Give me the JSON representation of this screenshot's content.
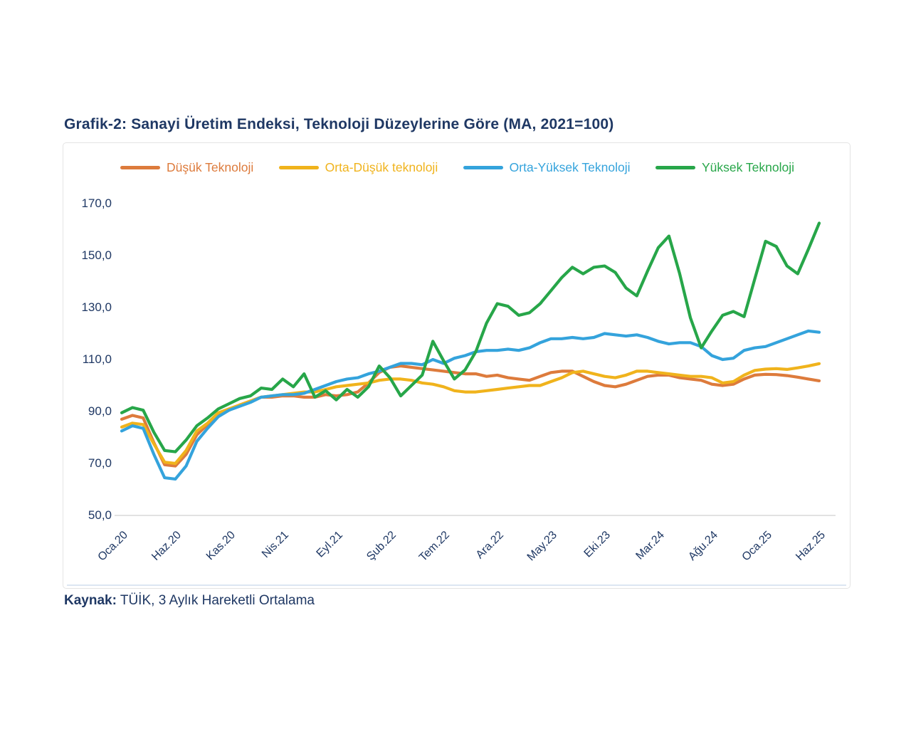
{
  "title": "Grafik-2: Sanayi Üretim Endeksi, Teknoloji Düzeylerine Göre (MA, 2021=100)",
  "source": {
    "label": "Kaynak:",
    "text": " TÜİK, 3 Aylık Hareketli Ortalama"
  },
  "colors": {
    "title_navy": "#1f3864",
    "axis_text": "#1f3864",
    "axis_line": "#d9d9d9",
    "card_border": "#e4e4e4",
    "bottom_rule": "#dce6f2"
  },
  "chart_data": {
    "type": "line",
    "title": "Grafik-2: Sanayi Üretim Endeksi, Teknoloji Düzeylerine Göre (MA, 2021=100)",
    "x_unit": "month",
    "x_range_note": "monthly points from Oca.20 (Jan 2020) to Haz.25 (Jun 2025), 66 points",
    "n_points": 66,
    "x_tick_every": 5,
    "x_tick_labels": [
      "Oca.20",
      "Haz.20",
      "Kas.20",
      "Nis.21",
      "Eyl.21",
      "Şub.22",
      "Tem.22",
      "Ara.22",
      "May.23",
      "Eki.23",
      "Mar.24",
      "Ağu.24",
      "Oca.25",
      "Haz.25"
    ],
    "y_tick_labels": [
      "170,0",
      "150,0",
      "130,0",
      "110,0",
      "90,0",
      "70,0",
      "50,0"
    ],
    "y_tick_values": [
      170,
      150,
      130,
      110,
      90,
      70,
      50
    ],
    "ylim": [
      50,
      170
    ],
    "grid": false,
    "legend_position": "top",
    "series": [
      {
        "id": "dusuk-teknoloji",
        "name": "Düşük Teknoloji",
        "color": "#dd7b3c",
        "values": [
          87,
          88.5,
          87.5,
          78,
          69.5,
          69,
          73.5,
          81,
          85,
          89,
          90.5,
          92.5,
          94,
          95.5,
          95.5,
          96,
          96,
          95.5,
          95.5,
          96.5,
          96,
          96.5,
          97.5,
          101,
          105,
          107,
          107.5,
          107,
          106.5,
          106,
          105.5,
          105,
          104.5,
          104.5,
          103.5,
          104,
          103,
          102.5,
          102,
          103.5,
          105,
          105.5,
          105.5,
          103.5,
          101.5,
          100,
          99.5,
          100.5,
          102,
          103.5,
          104,
          104,
          103,
          102.5,
          102,
          100.5,
          100,
          100.5,
          102.5,
          104,
          104.3,
          104.2,
          103.8,
          103.2,
          102.5,
          101.8
        ]
      },
      {
        "id": "orta-dusuk-teknoloji",
        "name": "Orta-Düşük teknoloji",
        "color": "#f0b31c",
        "values": [
          84,
          85.5,
          85,
          77.5,
          70.5,
          70,
          75,
          82.5,
          85.5,
          89.5,
          91,
          92.5,
          94,
          95.5,
          96,
          96.5,
          97,
          97.5,
          97.5,
          98.5,
          99.5,
          100,
          100.5,
          101,
          102,
          102.5,
          102.5,
          102,
          101,
          100.5,
          99.5,
          98,
          97.5,
          97.5,
          98,
          98.5,
          99,
          99.5,
          100,
          100,
          101.5,
          103,
          105,
          105.5,
          104.5,
          103.5,
          103,
          104,
          105.5,
          105.5,
          105,
          104.5,
          104,
          103.5,
          103.5,
          103,
          101,
          101.5,
          104,
          105.8,
          106.3,
          106.5,
          106.2,
          106.8,
          107.5,
          108.4
        ]
      },
      {
        "id": "orta-yuksek-teknoloji",
        "name": "Orta-Yüksek Teknoloji",
        "color": "#34a3dc",
        "values": [
          82.5,
          84.5,
          83.5,
          73.5,
          64.5,
          64,
          69,
          78.5,
          83.5,
          88,
          90.5,
          92,
          93.5,
          95.5,
          96,
          96.5,
          96.5,
          97,
          98.5,
          100,
          101.5,
          102.5,
          103,
          104.5,
          105.5,
          107,
          108.5,
          108.5,
          108,
          110,
          108.5,
          110.5,
          111.5,
          113,
          113.5,
          113.5,
          114,
          113.5,
          114.5,
          116.5,
          118,
          118,
          118.5,
          118,
          118.5,
          120,
          119.5,
          119,
          119.5,
          118.5,
          117,
          116,
          116.5,
          116.5,
          115,
          111.5,
          110,
          110.5,
          113.5,
          114.5,
          115,
          116.5,
          118,
          119.5,
          121,
          120.5
        ]
      },
      {
        "id": "yuksek-teknoloji",
        "name": "Yüksek Teknoloji",
        "color": "#27a649",
        "values": [
          89.5,
          91.5,
          90.5,
          82,
          75,
          74.5,
          79,
          84.5,
          87.5,
          91,
          93,
          95,
          96,
          99,
          98.5,
          102.5,
          99.5,
          104.5,
          95.5,
          98,
          94.5,
          98.5,
          95.5,
          99.5,
          107.5,
          103,
          96,
          100,
          104,
          117,
          109.5,
          102.5,
          106,
          113,
          124,
          131.5,
          130.5,
          127,
          128,
          131.5,
          136.5,
          141.5,
          145.5,
          143,
          145.5,
          146,
          143.5,
          137.5,
          134.5,
          144,
          153,
          157.5,
          143,
          126,
          114.5,
          121,
          127,
          128.5,
          126.5,
          141,
          155.5,
          153.5,
          146,
          143,
          152.5,
          162.5
        ]
      }
    ]
  }
}
